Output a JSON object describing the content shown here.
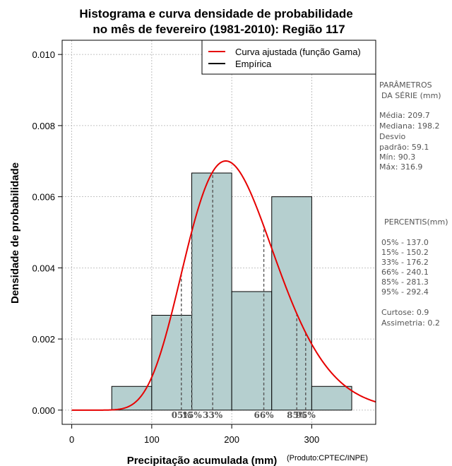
{
  "chart_data": {
    "type": "bar",
    "title_lines": [
      "Histograma e curva densidade de probabilidade",
      "no mês de fevereiro (1981-2010): Região 117"
    ],
    "xlabel": "Precipitação acumulada (mm)",
    "ylabel": "Densidade de probabilidade",
    "credit": "(Produto:CPTEC/INPE)",
    "xlim": [
      -12,
      380
    ],
    "ylim": [
      -0.0004,
      0.0104
    ],
    "xticks": [
      0,
      100,
      200,
      300
    ],
    "yticks": [
      0.0,
      0.002,
      0.004,
      0.006,
      0.008,
      0.01
    ],
    "ytick_labels": [
      "0.000",
      "0.002",
      "0.004",
      "0.006",
      "0.008",
      "0.010"
    ],
    "grid": true,
    "bins": [
      {
        "x0": 50,
        "x1": 100,
        "density": 0.000667
      },
      {
        "x0": 100,
        "x1": 150,
        "density": 0.002667
      },
      {
        "x0": 150,
        "x1": 200,
        "density": 0.006667
      },
      {
        "x0": 200,
        "x1": 250,
        "density": 0.003333
      },
      {
        "x0": 250,
        "x1": 300,
        "density": 0.006
      },
      {
        "x0": 300,
        "x1": 350,
        "density": 0.000667
      }
    ],
    "gamma_fit": {
      "shape": 12.6,
      "scale": 16.6
    },
    "legend": {
      "position": "top-right",
      "entries": [
        {
          "label": "Curva ajustada (função Gama)",
          "color": "#e60000"
        },
        {
          "label": "Empírica",
          "color": "#000000"
        }
      ]
    },
    "percentile_lines": [
      {
        "label": "05%",
        "x": 137.0
      },
      {
        "label": "15%",
        "x": 150.2
      },
      {
        "label": "33%",
        "x": 176.2
      },
      {
        "label": "66%",
        "x": 240.1
      },
      {
        "label": "85%",
        "x": 281.3
      },
      {
        "label": "95%",
        "x": 292.4
      }
    ]
  },
  "side_panel": {
    "params_heading_1": "PARÂMETROS",
    "params_heading_2": "DA SÉRIE (mm)",
    "media": "Média:  209.7",
    "mediana": "Mediana:  198.2",
    "desvio_1": "Desvio",
    "desvio_2": "padrão:  59.1",
    "min": "Mín:  90.3",
    "max": "Máx:  316.9",
    "percentis_heading": "PERCENTIS(mm)",
    "p05": "05% -  137.0",
    "p15": "15% -  150.2",
    "p33": "33% -  176.2",
    "p66": "66% -  240.1",
    "p85": "85% -  281.3",
    "p95": "95% -  292.4",
    "curtose": "Curtose:  0.9",
    "assimetria": "Assimetria:  0.2"
  },
  "colors": {
    "bar_fill": "#b5cfcf",
    "bar_stroke": "#000000",
    "curve": "#e60000",
    "grid": "#b0b0b0",
    "percentile_line": "#555555"
  }
}
